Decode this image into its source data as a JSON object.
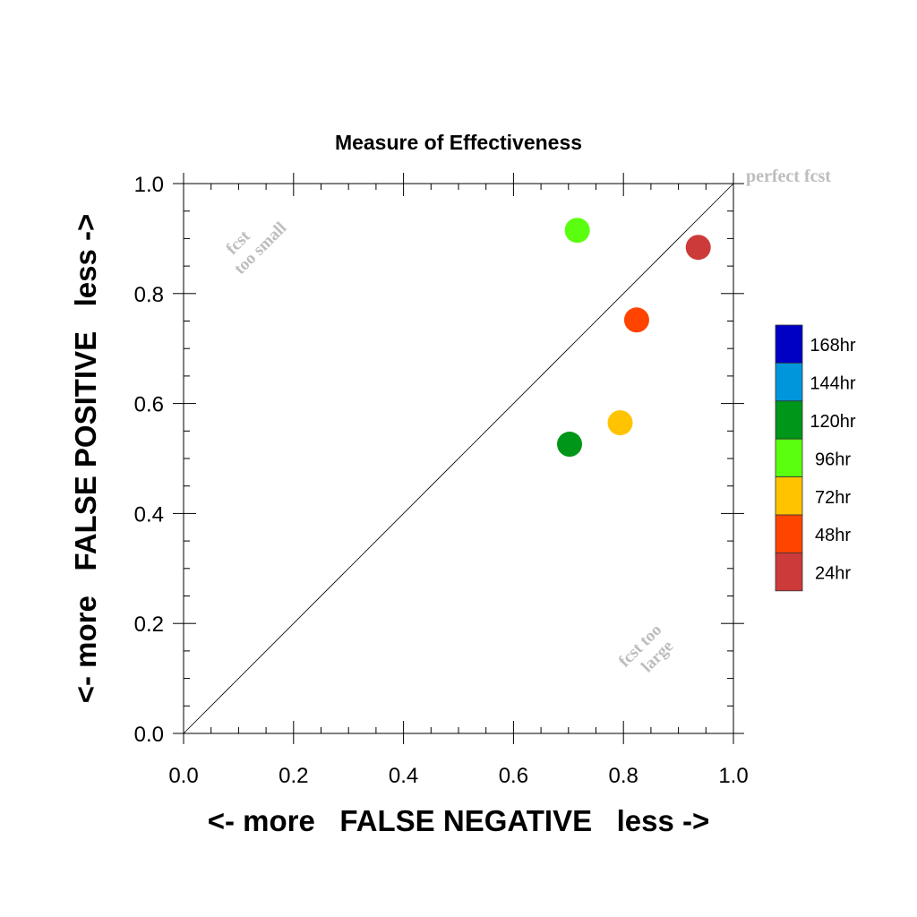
{
  "chart_data": {
    "type": "scatter",
    "title": "Measure of Effectiveness",
    "xlabel": "<- more   FALSE NEGATIVE   less ->",
    "ylabel": "<- more   FALSE POSITIVE   less ->",
    "xlim": [
      0.0,
      1.0
    ],
    "ylim": [
      0.0,
      1.0
    ],
    "xticks": [
      "0.0",
      "0.2",
      "0.4",
      "0.6",
      "0.8",
      "1.0"
    ],
    "yticks": [
      "0.0",
      "0.2",
      "0.4",
      "0.6",
      "0.8",
      "1.0"
    ],
    "grid": false,
    "reference_line": {
      "from": [
        0.0,
        0.0
      ],
      "to": [
        1.0,
        1.0
      ]
    },
    "annotations": [
      {
        "text": "perfect fcst"
      },
      {
        "text": "fcst"
      },
      {
        "text": "too small"
      },
      {
        "text": "fcst too"
      },
      {
        "text": "large"
      }
    ],
    "legend": {
      "placement": "right",
      "entries": [
        {
          "label": "168hr",
          "color": "#0000c4"
        },
        {
          "label": "144hr",
          "color": "#0096dc"
        },
        {
          "label": "120hr",
          "color": "#009619"
        },
        {
          "label": "96hr",
          "color": "#5aff0f"
        },
        {
          "label": "72hr",
          "color": "#ffc300"
        },
        {
          "label": "48hr",
          "color": "#ff4400"
        },
        {
          "label": "24hr",
          "color": "#cc3a3a"
        }
      ]
    },
    "points": [
      {
        "series": "24hr",
        "x": 0.936,
        "y": 0.884,
        "color": "#cc3a3a"
      },
      {
        "series": "48hr",
        "x": 0.824,
        "y": 0.752,
        "color": "#ff4400"
      },
      {
        "series": "72hr",
        "x": 0.794,
        "y": 0.565,
        "color": "#ffc300"
      },
      {
        "series": "96hr",
        "x": 0.716,
        "y": 0.915,
        "color": "#5aff0f"
      },
      {
        "series": "120hr",
        "x": 0.702,
        "y": 0.526,
        "color": "#009619"
      }
    ]
  }
}
